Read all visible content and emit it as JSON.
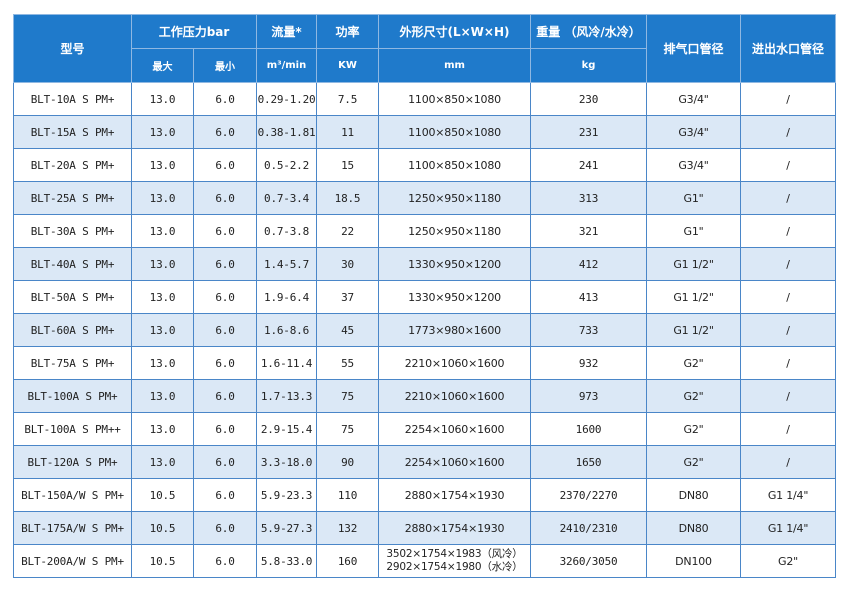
{
  "headers": {
    "model": "型号",
    "pressure": "工作压力bar",
    "pressure_max": "最大",
    "pressure_min": "最小",
    "flow": "流量*",
    "flow_unit": "m³/min",
    "power": "功率",
    "power_unit": "KW",
    "dims": "外形尺寸(L×W×H)",
    "dims_unit": "mm",
    "weight": "重量 （风冷/水冷）",
    "weight_unit": "kg",
    "exhaust": "排气口管径",
    "water": "进出水口管径"
  },
  "rows": [
    {
      "model": "BLT-10A S PM+",
      "pmax": "13.0",
      "pmin": "6.0",
      "flow": "0.29-1.20",
      "power": "7.5",
      "dims": [
        "1100×850×1080"
      ],
      "weight": "230",
      "exhaust": "G3/4\"",
      "water": "/"
    },
    {
      "model": "BLT-15A S PM+",
      "pmax": "13.0",
      "pmin": "6.0",
      "flow": "0.38-1.81",
      "power": "11",
      "dims": [
        "1100×850×1080"
      ],
      "weight": "231",
      "exhaust": "G3/4\"",
      "water": "/"
    },
    {
      "model": "BLT-20A S PM+",
      "pmax": "13.0",
      "pmin": "6.0",
      "flow": "0.5-2.2",
      "power": "15",
      "dims": [
        "1100×850×1080"
      ],
      "weight": "241",
      "exhaust": "G3/4\"",
      "water": "/"
    },
    {
      "model": "BLT-25A S PM+",
      "pmax": "13.0",
      "pmin": "6.0",
      "flow": "0.7-3.4",
      "power": "18.5",
      "dims": [
        "1250×950×1180"
      ],
      "weight": "313",
      "exhaust": "G1\"",
      "water": "/"
    },
    {
      "model": "BLT-30A S PM+",
      "pmax": "13.0",
      "pmin": "6.0",
      "flow": "0.7-3.8",
      "power": "22",
      "dims": [
        "1250×950×1180"
      ],
      "weight": "321",
      "exhaust": "G1\"",
      "water": "/"
    },
    {
      "model": "BLT-40A S PM+",
      "pmax": "13.0",
      "pmin": "6.0",
      "flow": "1.4-5.7",
      "power": "30",
      "dims": [
        "1330×950×1200"
      ],
      "weight": "412",
      "exhaust": "G1 1/2\"",
      "water": "/"
    },
    {
      "model": "BLT-50A S PM+",
      "pmax": "13.0",
      "pmin": "6.0",
      "flow": "1.9-6.4",
      "power": "37",
      "dims": [
        "1330×950×1200"
      ],
      "weight": "413",
      "exhaust": "G1 1/2\"",
      "water": "/"
    },
    {
      "model": "BLT-60A S PM+",
      "pmax": "13.0",
      "pmin": "6.0",
      "flow": "1.6-8.6",
      "power": "45",
      "dims": [
        "1773×980×1600"
      ],
      "weight": "733",
      "exhaust": "G1 1/2\"",
      "water": "/"
    },
    {
      "model": "BLT-75A S PM+",
      "pmax": "13.0",
      "pmin": "6.0",
      "flow": "1.6-11.4",
      "power": "55",
      "dims": [
        "2210×1060×1600"
      ],
      "weight": "932",
      "exhaust": "G2\"",
      "water": "/"
    },
    {
      "model": "BLT-100A S PM+",
      "pmax": "13.0",
      "pmin": "6.0",
      "flow": "1.7-13.3",
      "power": "75",
      "dims": [
        "2210×1060×1600"
      ],
      "weight": "973",
      "exhaust": "G2\"",
      "water": "/"
    },
    {
      "model": "BLT-100A S PM++",
      "pmax": "13.0",
      "pmin": "6.0",
      "flow": "2.9-15.4",
      "power": "75",
      "dims": [
        "2254×1060×1600"
      ],
      "weight": "1600",
      "exhaust": "G2\"",
      "water": "/"
    },
    {
      "model": "BLT-120A S PM+",
      "pmax": "13.0",
      "pmin": "6.0",
      "flow": "3.3-18.0",
      "power": "90",
      "dims": [
        "2254×1060×1600"
      ],
      "weight": "1650",
      "exhaust": "G2\"",
      "water": "/"
    },
    {
      "model": "BLT-150A/W S PM+",
      "pmax": "10.5",
      "pmin": "6.0",
      "flow": "5.9-23.3",
      "power": "110",
      "dims": [
        "2880×1754×1930"
      ],
      "weight": "2370/2270",
      "exhaust": "DN80",
      "water": "G1 1/4\""
    },
    {
      "model": "BLT-175A/W S PM+",
      "pmax": "10.5",
      "pmin": "6.0",
      "flow": "5.9-27.3",
      "power": "132",
      "dims": [
        "2880×1754×1930"
      ],
      "weight": "2410/2310",
      "exhaust": "DN80",
      "water": "G1 1/4\""
    },
    {
      "model": "BLT-200A/W S PM+",
      "pmax": "10.5",
      "pmin": "6.0",
      "flow": "5.8-33.0",
      "power": "160",
      "dims": [
        "3502×1754×1983（风冷）",
        "2902×1754×1980（水冷）"
      ],
      "weight": "3260/3050",
      "exhaust": "DN100",
      "water": "G2\""
    }
  ]
}
